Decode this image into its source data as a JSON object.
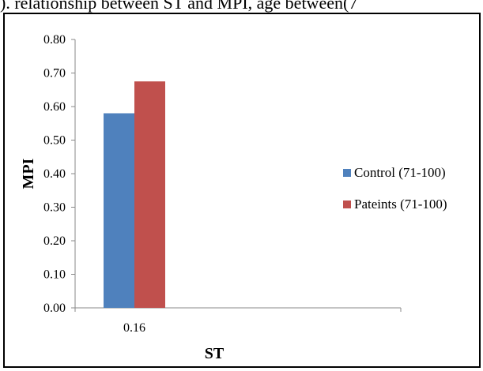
{
  "caption": "). relationship between ST and MPI, age between(7",
  "chart_data": {
    "type": "bar",
    "categories": [
      "0.16"
    ],
    "series": [
      {
        "name": "Control (71-100)",
        "values": [
          0.58
        ],
        "color": "#4f81bd"
      },
      {
        "name": "Pateints (71-100)",
        "values": [
          0.675
        ],
        "color": "#c0504d"
      }
    ],
    "xlabel": "ST",
    "ylabel": "MPI",
    "ylim": [
      0,
      0.8
    ],
    "yticks": [
      "0.00",
      "0.10",
      "0.20",
      "0.30",
      "0.40",
      "0.50",
      "0.60",
      "0.70",
      "0.80"
    ],
    "legend_position": "right",
    "grid": false
  }
}
